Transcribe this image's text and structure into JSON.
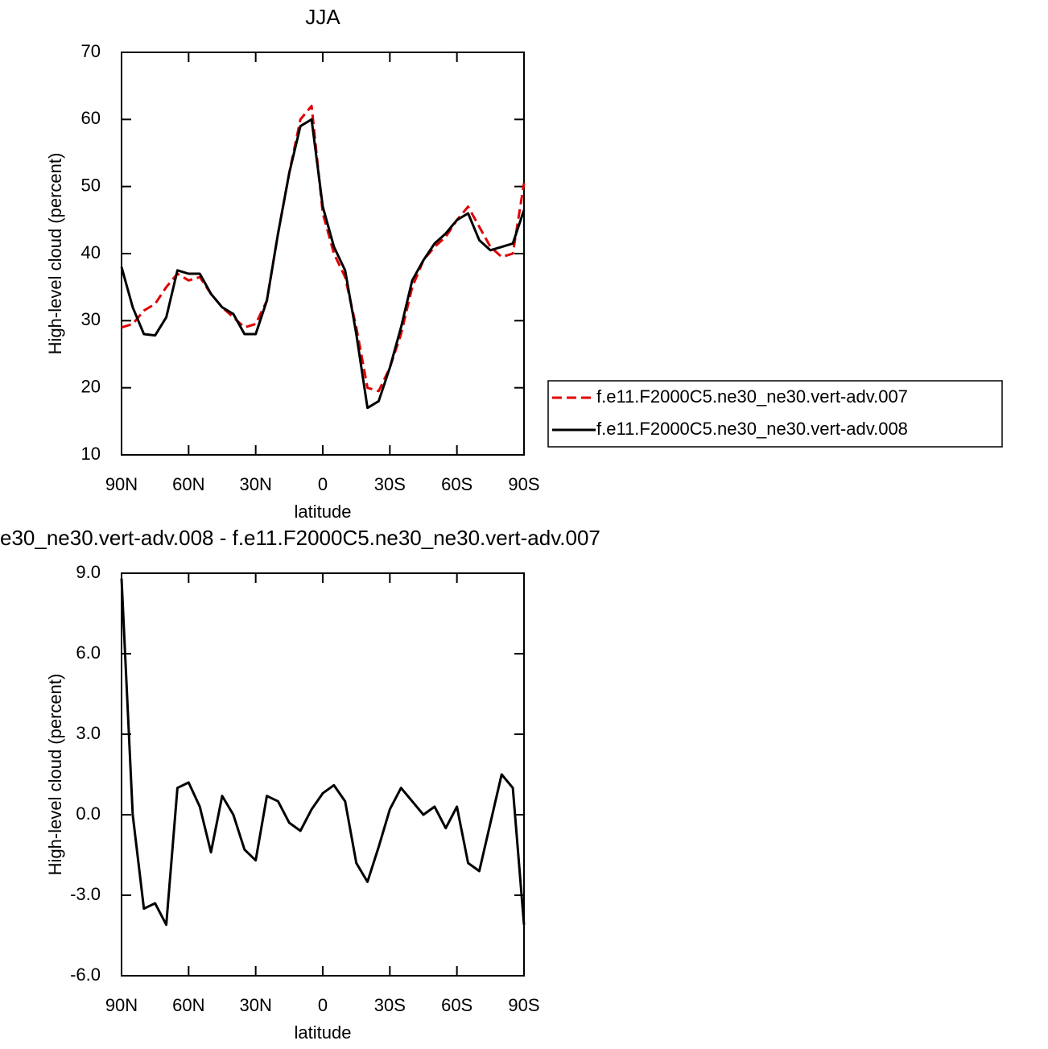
{
  "chart_data": [
    {
      "type": "line",
      "title": "JJA",
      "xlabel": "latitude",
      "ylabel": "High-level cloud (percent)",
      "x": [
        90,
        85,
        80,
        75,
        70,
        65,
        60,
        55,
        50,
        45,
        40,
        35,
        30,
        25,
        20,
        15,
        10,
        5,
        0,
        -5,
        -10,
        -15,
        -20,
        -25,
        -30,
        -35,
        -40,
        -45,
        -50,
        -55,
        -60,
        -65,
        -70,
        -75,
        -80,
        -85,
        -90
      ],
      "series": [
        {
          "name": "f.e11.F2000C5.ne30_ne30.vert-adv.007",
          "color": "#e00000",
          "style": "dashed",
          "values": [
            29,
            29.5,
            31.5,
            32.5,
            35,
            37,
            36,
            36.5,
            34,
            32,
            30.5,
            29,
            29.5,
            33,
            43,
            52,
            60,
            62,
            46,
            40,
            36.5,
            29,
            20,
            19.5,
            23,
            28,
            35,
            39,
            41,
            42.5,
            45,
            47,
            44,
            41,
            39.5,
            40,
            50.5
          ]
        },
        {
          "name": "f.e11.F2000C5.ne30_ne30.vert-adv.008",
          "color": "#000000",
          "style": "solid",
          "values": [
            38,
            32,
            28,
            27.8,
            30.5,
            37.5,
            37,
            37,
            34,
            32,
            31,
            28,
            28,
            33,
            43,
            52,
            59,
            60,
            47,
            41,
            37.5,
            28,
            17,
            18,
            23,
            29,
            36,
            39,
            41.5,
            43,
            45,
            46,
            42,
            40.5,
            41,
            41.5,
            46.5
          ]
        }
      ],
      "xlim": [
        90,
        -90
      ],
      "xticks": [
        {
          "value": 90,
          "label": "90N"
        },
        {
          "value": 60,
          "label": "60N"
        },
        {
          "value": 30,
          "label": "30N"
        },
        0,
        {
          "value": -30,
          "label": "30S"
        },
        {
          "value": -60,
          "label": "60S"
        },
        {
          "value": -90,
          "label": "90S"
        }
      ],
      "ylim": [
        10,
        70
      ],
      "yticks": [
        10,
        20,
        30,
        40,
        50,
        60,
        70
      ],
      "legend": "outside-right"
    },
    {
      "type": "line",
      "title": "e30_ne30.vert-adv.008 - f.e11.F2000C5.ne30_ne30.vert-adv.007",
      "xlabel": "latitude",
      "ylabel": "High-level cloud (percent)",
      "x": [
        90,
        85,
        80,
        75,
        70,
        65,
        60,
        55,
        50,
        45,
        40,
        35,
        30,
        25,
        20,
        15,
        10,
        5,
        0,
        -5,
        -10,
        -15,
        -20,
        -25,
        -30,
        -35,
        -40,
        -45,
        -50,
        -55,
        -60,
        -65,
        -70,
        -75,
        -80,
        -85,
        -90
      ],
      "values": [
        8.8,
        0,
        -3.5,
        -3.3,
        -4.1,
        1.0,
        1.2,
        0.3,
        -1.4,
        0.7,
        0,
        -1.3,
        -1.7,
        0.7,
        0.5,
        -0.3,
        -0.6,
        0.2,
        0.8,
        1.1,
        0.5,
        -1.8,
        -2.5,
        -1.2,
        0.2,
        1.0,
        0.5,
        0,
        0.3,
        -0.5,
        0.3,
        -1.8,
        -2.1,
        -0.3,
        1.5,
        1.0,
        -4.1
      ],
      "color": "#000000",
      "xlim": [
        90,
        -90
      ],
      "xticks": [
        {
          "value": 90,
          "label": "90N"
        },
        {
          "value": 60,
          "label": "60N"
        },
        {
          "value": 30,
          "label": "30N"
        },
        0,
        {
          "value": -30,
          "label": "30S"
        },
        {
          "value": -60,
          "label": "60S"
        },
        {
          "value": -90,
          "label": "90S"
        }
      ],
      "ylim": [
        -6,
        9
      ],
      "yticks": [
        {
          "value": -6,
          "label": "-6.0"
        },
        {
          "value": -3,
          "label": "-3.0"
        },
        {
          "value": 0,
          "label": "0.0"
        },
        {
          "value": 3,
          "label": "3.0"
        },
        {
          "value": 6,
          "label": "6.0"
        },
        {
          "value": 9,
          "label": "9.0"
        }
      ]
    }
  ]
}
